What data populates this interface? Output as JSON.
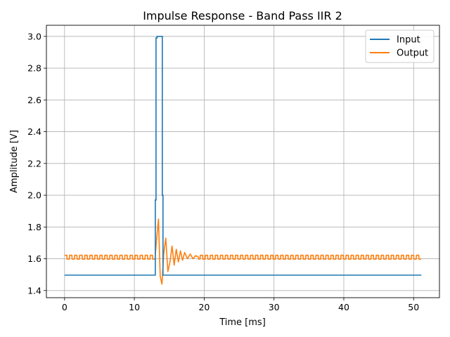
{
  "chart_data": {
    "type": "line",
    "title": "Impulse Response - Band Pass IIR 2",
    "xlabel": "Time [ms]",
    "ylabel": "Amplitude [V]",
    "xlim": [
      -2.6,
      53.7
    ],
    "ylim": [
      1.355,
      3.07
    ],
    "xticks": [
      0,
      10,
      20,
      30,
      40,
      50
    ],
    "xtick_labels": [
      "0",
      "10",
      "20",
      "30",
      "40",
      "50"
    ],
    "yticks": [
      1.4,
      1.6,
      1.8,
      2.0,
      2.2,
      2.4,
      2.6,
      2.8,
      3.0
    ],
    "ytick_labels": [
      "1.4",
      "1.6",
      "1.8",
      "2.0",
      "2.2",
      "2.4",
      "2.6",
      "2.8",
      "3.0"
    ],
    "grid": true,
    "legend_position": "upper-right",
    "series": [
      {
        "name": "Input",
        "color": "#1f77b4",
        "x": [
          0,
          13.0,
          13.0,
          13.1,
          13.1,
          13.25,
          13.25,
          14.0,
          14.0,
          14.1,
          14.1,
          51.1
        ],
        "y": [
          1.497,
          1.497,
          1.97,
          1.97,
          2.99,
          2.99,
          3.0,
          3.0,
          2.0,
          2.0,
          1.497,
          1.497
        ]
      },
      {
        "name": "Output",
        "color": "#ff7f0e",
        "x": [
          0,
          13.0,
          13.2,
          13.45,
          13.7,
          13.95,
          14.2,
          14.5,
          14.8,
          15.1,
          15.4,
          15.7,
          16.0,
          16.3,
          16.6,
          16.9,
          17.2,
          17.6,
          18.0,
          18.4,
          18.8,
          19.2,
          51.1
        ],
        "y": [
          1.61,
          1.61,
          1.73,
          1.85,
          1.49,
          1.44,
          1.63,
          1.73,
          1.52,
          1.58,
          1.68,
          1.56,
          1.66,
          1.58,
          1.65,
          1.59,
          1.64,
          1.6,
          1.63,
          1.6,
          1.62,
          1.61,
          1.61
        ],
        "ripple": {
          "amplitude": 0.012,
          "period": 0.72
        }
      }
    ]
  }
}
